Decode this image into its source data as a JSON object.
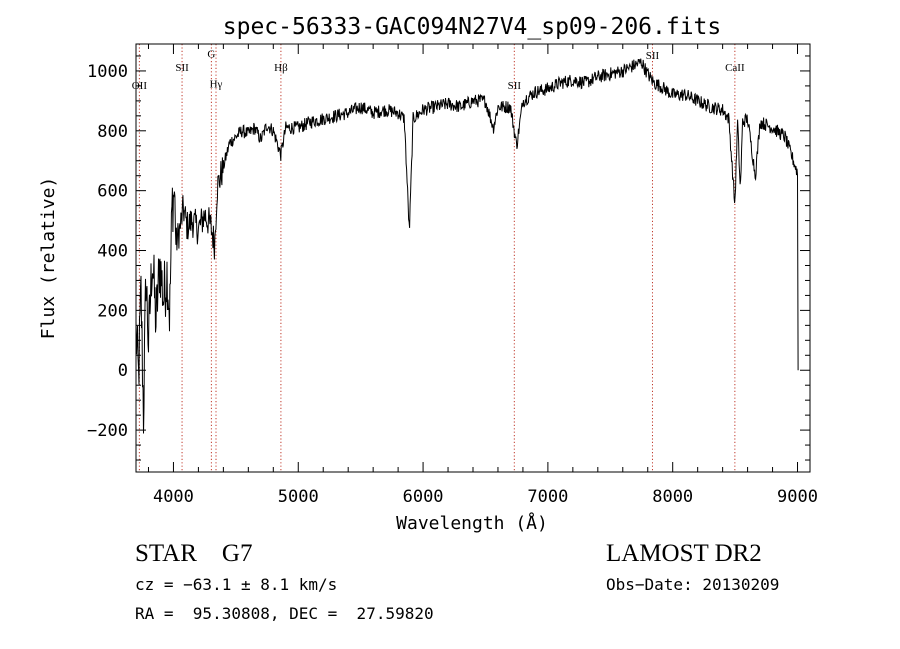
{
  "chart_data": {
    "type": "line",
    "title": "spec-56333-GAC094N27V4_sp09-206.fits",
    "xlabel": "Wavelength (Å)",
    "ylabel": "Flux (relative)",
    "xlim": [
      3700,
      9100
    ],
    "ylim": [
      -340,
      1090
    ],
    "x_major_ticks": [
      4000,
      5000,
      6000,
      7000,
      8000,
      9000
    ],
    "x_tick_labels": [
      "4000",
      "5000",
      "6000",
      "7000",
      "8000",
      "9000"
    ],
    "y_major_ticks": [
      -200,
      0,
      200,
      400,
      600,
      800,
      1000
    ],
    "y_tick_labels": [
      "−200",
      "0",
      "200",
      "400",
      "600",
      "800",
      "1000"
    ],
    "grid": false,
    "line_color": "#000000",
    "marker_color": "#c0392b",
    "spectrum_anchors": [
      [
        3700,
        130
      ],
      [
        3720,
        -30
      ],
      [
        3740,
        260
      ],
      [
        3760,
        -150
      ],
      [
        3780,
        320
      ],
      [
        3800,
        90
      ],
      [
        3830,
        380
      ],
      [
        3860,
        160
      ],
      [
        3890,
        360
      ],
      [
        3920,
        240
      ],
      [
        3950,
        330
      ],
      [
        3970,
        180
      ],
      [
        3990,
        560
      ],
      [
        4010,
        600
      ],
      [
        4020,
        420
      ],
      [
        4050,
        470
      ],
      [
        4080,
        540
      ],
      [
        4110,
        480
      ],
      [
        4150,
        500
      ],
      [
        4200,
        470
      ],
      [
        4250,
        520
      ],
      [
        4300,
        480
      ],
      [
        4330,
        420
      ],
      [
        4350,
        610
      ],
      [
        4400,
        680
      ],
      [
        4450,
        760
      ],
      [
        4500,
        780
      ],
      [
        4550,
        800
      ],
      [
        4600,
        790
      ],
      [
        4650,
        810
      ],
      [
        4700,
        770
      ],
      [
        4750,
        820
      ],
      [
        4800,
        800
      ],
      [
        4860,
        720
      ],
      [
        4900,
        810
      ],
      [
        5000,
        810
      ],
      [
        5100,
        830
      ],
      [
        5200,
        840
      ],
      [
        5300,
        850
      ],
      [
        5400,
        860
      ],
      [
        5500,
        880
      ],
      [
        5600,
        860
      ],
      [
        5700,
        870
      ],
      [
        5800,
        860
      ],
      [
        5850,
        840
      ],
      [
        5890,
        460
      ],
      [
        5920,
        840
      ],
      [
        6000,
        870
      ],
      [
        6100,
        880
      ],
      [
        6200,
        890
      ],
      [
        6300,
        880
      ],
      [
        6400,
        900
      ],
      [
        6500,
        900
      ],
      [
        6563,
        810
      ],
      [
        6600,
        880
      ],
      [
        6700,
        880
      ],
      [
        6750,
        750
      ],
      [
        6800,
        900
      ],
      [
        6900,
        930
      ],
      [
        7000,
        940
      ],
      [
        7100,
        960
      ],
      [
        7200,
        970
      ],
      [
        7300,
        960
      ],
      [
        7400,
        980
      ],
      [
        7500,
        990
      ],
      [
        7600,
        1000
      ],
      [
        7700,
        1020
      ],
      [
        7750,
        1030
      ],
      [
        7800,
        990
      ],
      [
        7850,
        960
      ],
      [
        7900,
        950
      ],
      [
        8000,
        920
      ],
      [
        8100,
        920
      ],
      [
        8200,
        900
      ],
      [
        8300,
        880
      ],
      [
        8400,
        870
      ],
      [
        8450,
        840
      ],
      [
        8498,
        550
      ],
      [
        8520,
        830
      ],
      [
        8542,
        600
      ],
      [
        8560,
        830
      ],
      [
        8600,
        840
      ],
      [
        8662,
        650
      ],
      [
        8700,
        830
      ],
      [
        8800,
        810
      ],
      [
        8900,
        780
      ],
      [
        8950,
        720
      ],
      [
        9000,
        660
      ],
      [
        9005,
        0
      ]
    ],
    "lines": [
      {
        "label": "OII",
        "wavelength": 3727,
        "label_y": 940
      },
      {
        "label": "SII",
        "wavelength": 4069,
        "label_y": 1000
      },
      {
        "label": "G",
        "wavelength": 4304,
        "label_y": 1045
      },
      {
        "label": "Hγ",
        "wavelength": 4341,
        "label_y": 945
      },
      {
        "label": "Hβ",
        "wavelength": 4861,
        "label_y": 1000
      },
      {
        "label": "SII",
        "wavelength": 6731,
        "label_y": 940
      },
      {
        "label": "SII",
        "wavelength": 7838,
        "label_y": 1040
      },
      {
        "label": "CaII",
        "wavelength": 8498,
        "label_y": 1000
      }
    ]
  },
  "info": {
    "object_class": "STAR    G7",
    "cz": "cz = −63.1 ± 8.1 km/s",
    "radec": "RA =  95.30808, DEC =  27.59820",
    "survey": "LAMOST DR2",
    "obs_date": "Obs−Date: 20130209"
  }
}
